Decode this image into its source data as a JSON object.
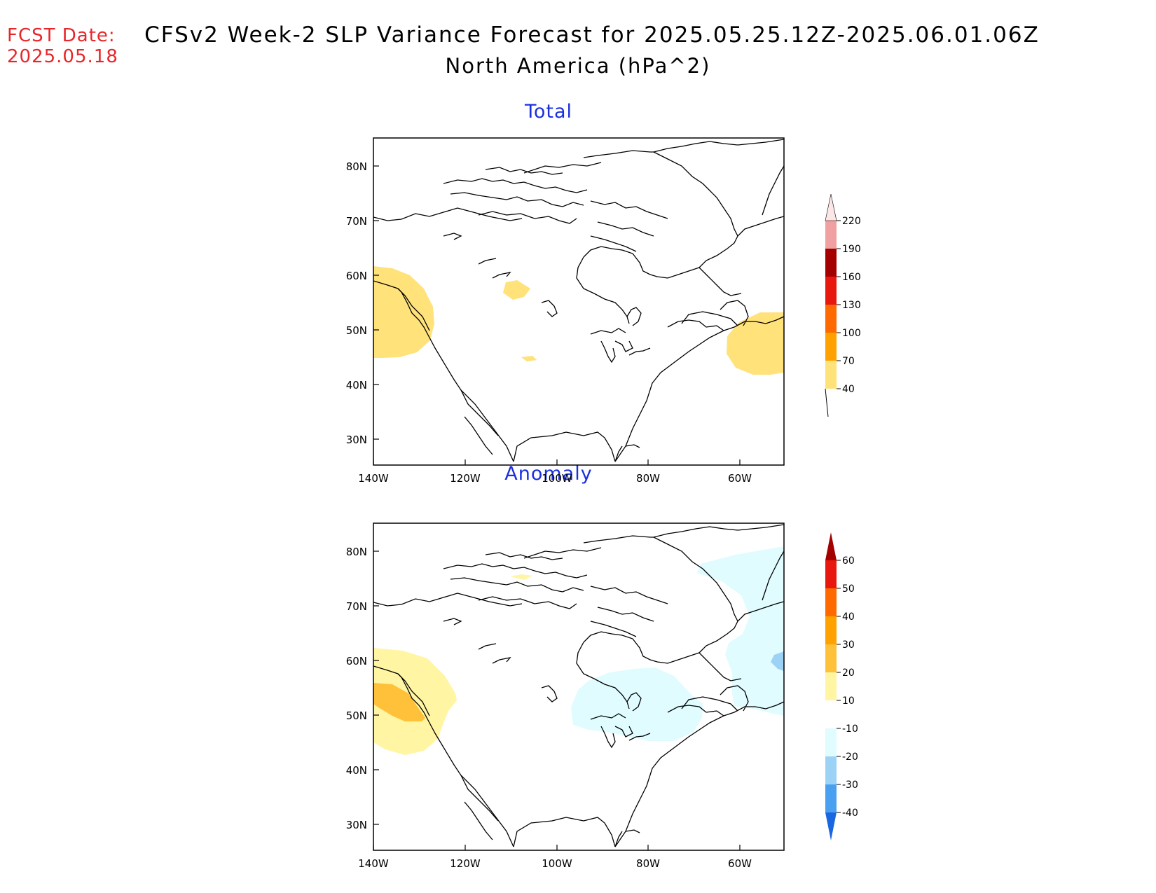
{
  "header": {
    "fcst_label": "FCST Date:",
    "fcst_date": "2025.05.18",
    "title_line1": "CFSv2 Week-2 SLP Variance Forecast for 2025.05.25.12Z-2025.06.01.06Z",
    "title_line2": "North America (hPa^2)"
  },
  "axes": {
    "lat_labels": [
      "80N",
      "70N",
      "60N",
      "50N",
      "40N",
      "30N"
    ],
    "lon_labels": [
      "140W",
      "120W",
      "100W",
      "80W",
      "60W"
    ]
  },
  "panels": [
    {
      "title": "Total",
      "colorbar": {
        "levels": [
          "40",
          "70",
          "100",
          "130",
          "160",
          "190",
          "220"
        ],
        "colors": [
          "#ffe27a",
          "#ffa200",
          "#ff6a00",
          "#e8180e",
          "#a50000",
          "#f0a0a0",
          "#fde6e6"
        ]
      }
    },
    {
      "title": "Anomaly",
      "colorbar": {
        "levels": [
          "60",
          "50",
          "40",
          "30",
          "20",
          "10",
          "-10",
          "-20",
          "-30",
          "-40"
        ],
        "colors": [
          "#a50000",
          "#e8180e",
          "#ff6a00",
          "#ffa200",
          "#ffc03a",
          "#fff5a3",
          "#ffffff",
          "#e0fcff",
          "#9dd2f7",
          "#4aa0f0",
          "#1a66e0"
        ]
      }
    }
  ]
}
